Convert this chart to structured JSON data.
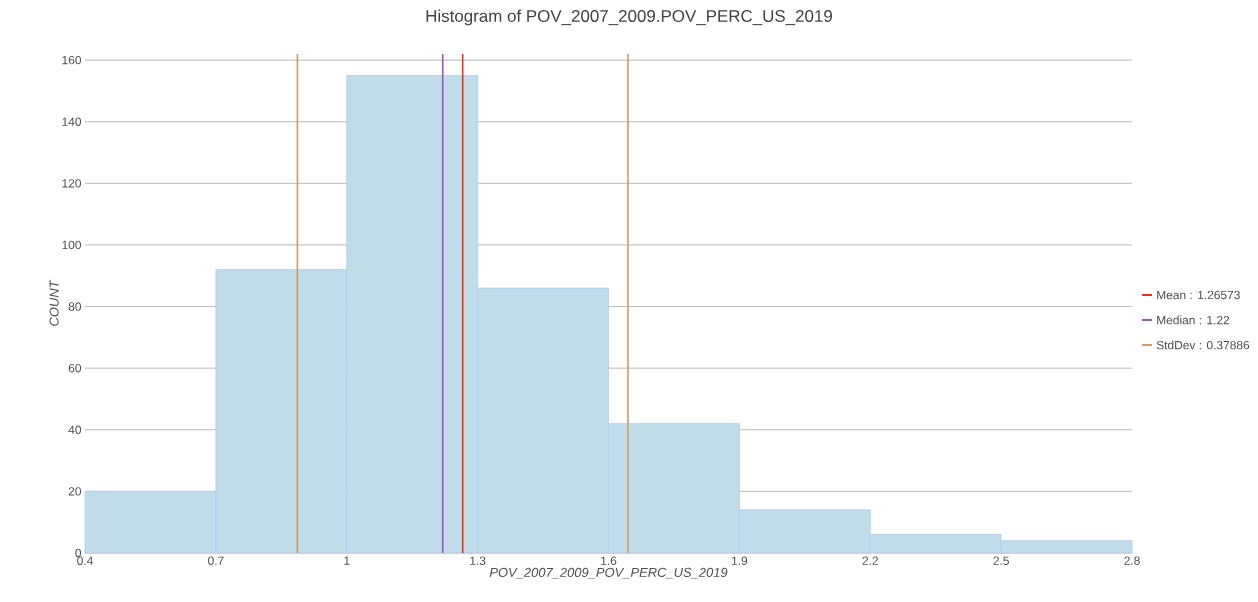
{
  "chart_data": {
    "type": "histogram",
    "title": "Histogram of POV_2007_2009.POV_PERC_US_2019",
    "xlabel": "POV_2007_2009_POV_PERC_US_2019",
    "ylabel": "COUNT",
    "bins": [
      0.4,
      0.7,
      1.0,
      1.3,
      1.6,
      1.9,
      2.2,
      2.5,
      2.8
    ],
    "values": [
      20,
      92,
      155,
      86,
      42,
      14,
      6,
      4
    ],
    "color": "#c0dce9",
    "xlim": [
      0.4,
      2.8
    ],
    "xticks": [
      0.4,
      0.7,
      1,
      1.3,
      1.6,
      1.9,
      2.2,
      2.5,
      2.8
    ],
    "ylim": [
      0,
      162
    ],
    "yticks": [
      0,
      20,
      40,
      60,
      80,
      100,
      120,
      140,
      160
    ],
    "grid": "y",
    "annotations": [
      "Mean : 1.26573",
      "Median : 1.22",
      "StdDev : 0.37886"
    ],
    "ref_lines": [
      {
        "axis": "x",
        "value": 1.26573,
        "color": "#e8311a"
      },
      {
        "axis": "x",
        "value": 1.22,
        "color": "#9b59b6"
      },
      {
        "axis": "x",
        "value": 0.88687,
        "color": "#d19a5e"
      },
      {
        "axis": "x",
        "value": 1.64459,
        "color": "#d19a5e"
      }
    ]
  }
}
